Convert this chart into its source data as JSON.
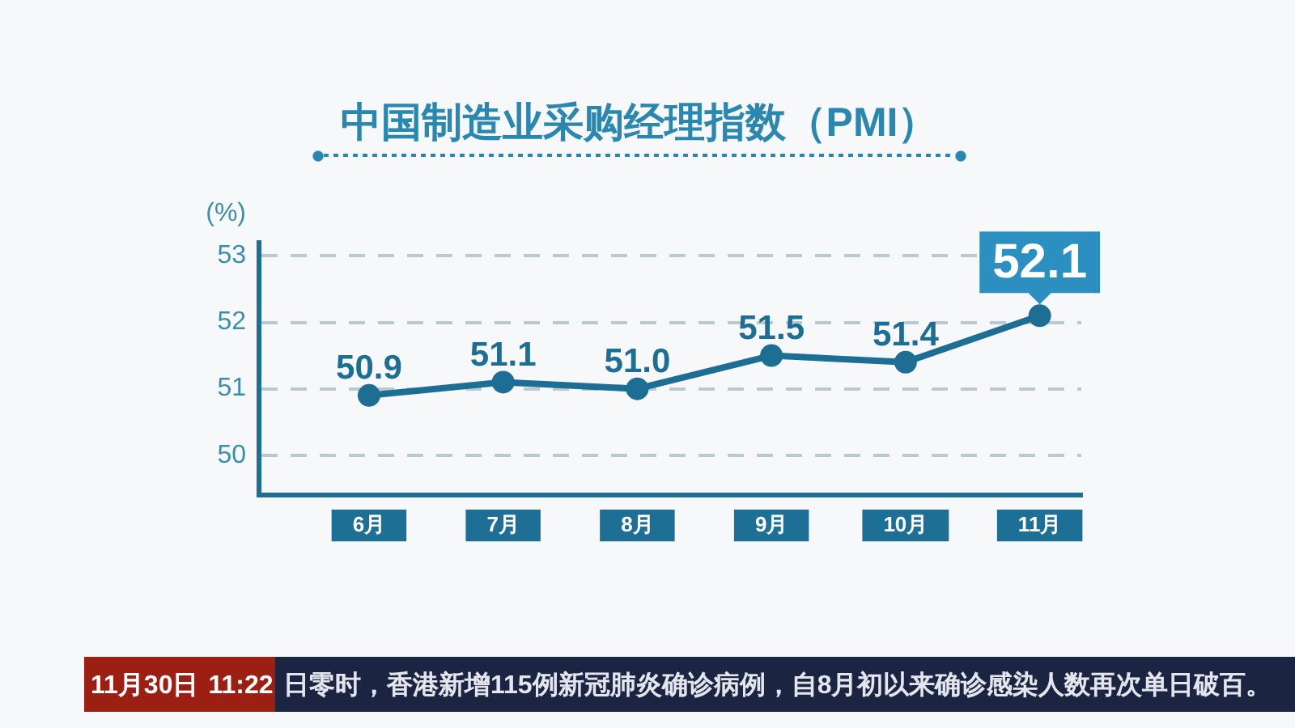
{
  "chart_data": {
    "type": "line",
    "title": "中国制造业采购经理指数（PMI）",
    "ylabel": "(%)",
    "categories": [
      "6月",
      "7月",
      "8月",
      "9月",
      "10月",
      "11月"
    ],
    "series": [
      {
        "color": "#1d6e95",
        "values": [
          50.9,
          51.1,
          51.0,
          51.5,
          51.4,
          52.1
        ],
        "value_labels": [
          "50.9",
          "51.1",
          "51.0",
          "51.5",
          "51.4",
          null
        ]
      }
    ],
    "ylim": [
      49.4,
      53.2
    ],
    "yticks": [
      50,
      51,
      52,
      53
    ],
    "grid": "y",
    "marker": "circle",
    "line_style": "solid",
    "annotations": [
      {
        "text": "52.1",
        "x": "11月",
        "y": 52.1
      },
      "11月30日",
      "11:22",
      "日零时，香港新增115例新冠肺炎确诊病例，自8月初以来确诊感染人数再次单日破百。"
    ]
  }
}
